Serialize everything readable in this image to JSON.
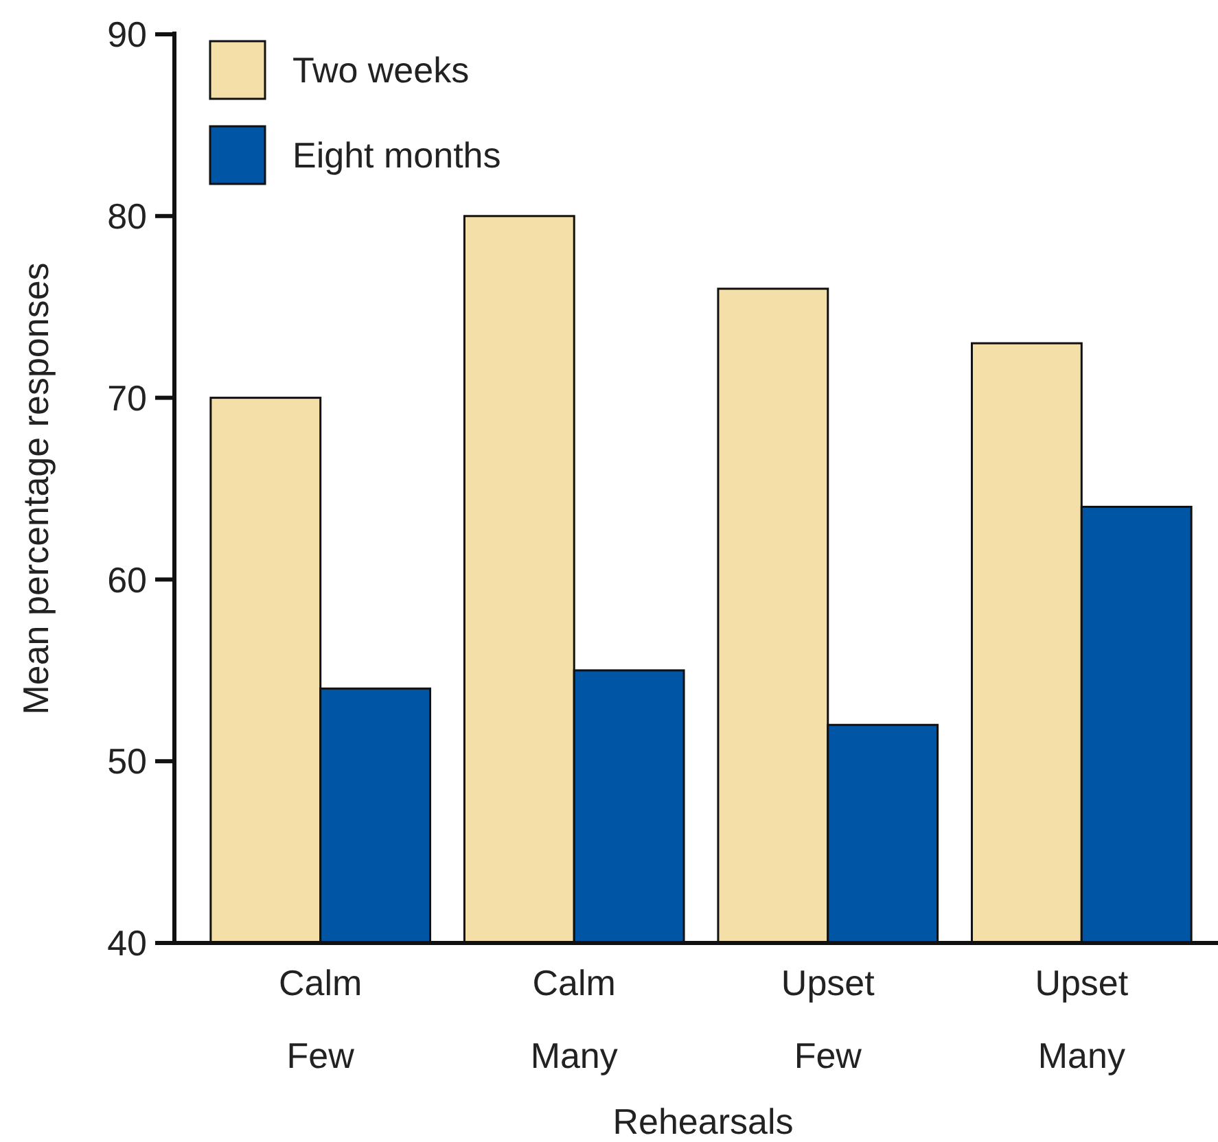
{
  "chart_data": {
    "type": "bar",
    "xlabel": "Rehearsals",
    "ylabel": "Mean percentage responses",
    "categories": [
      "Calm\nFew",
      "Calm\nMany",
      "Upset\nFew",
      "Upset\nMany"
    ],
    "series": [
      {
        "name": "Two weeks",
        "color": "#f5dfa8",
        "values": [
          70,
          80,
          76,
          73
        ]
      },
      {
        "name": "Eight months",
        "color": "#0055a5",
        "values": [
          54,
          55,
          52,
          64
        ]
      }
    ],
    "ylim": [
      40,
      90
    ],
    "yticks": [
      40,
      50,
      60,
      70,
      80,
      90
    ],
    "grid": false,
    "legend": "top left"
  }
}
